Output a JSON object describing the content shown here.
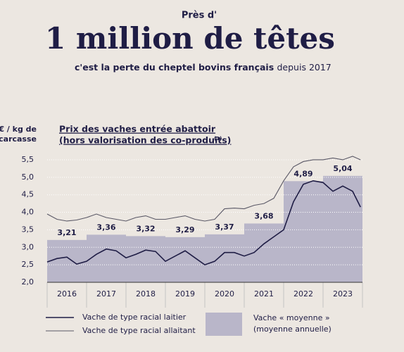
{
  "header": {
    "pre": "Près d'",
    "title": "1 million de têtes",
    "subtitle_bold": "c'est la perte du cheptel bovins français",
    "subtitle_light": "depuis 2017"
  },
  "chart_data": {
    "type": "combo",
    "title": [
      "Prix des vaches entrée abattoir",
      "(hors valorisation des co-produits)"
    ],
    "title_note": "(1)",
    "y_label": [
      "€ / kg de",
      "carcasse"
    ],
    "categories": [
      "2016",
      "2017",
      "2018",
      "2019",
      "2020",
      "2021",
      "2022",
      "2023"
    ],
    "bars": {
      "name": [
        "Vache « moyenne »",
        "(moyenne annuelle)"
      ],
      "color": "#b9b6c9",
      "values": [
        3.21,
        3.36,
        3.32,
        3.29,
        3.37,
        3.68,
        4.89,
        5.04
      ],
      "value_labels": [
        "3,21",
        "3,36",
        "3,32",
        "3,29",
        "3,37",
        "3,68",
        "4,89",
        "5,04"
      ]
    },
    "x": [
      2016,
      2016.25,
      2016.5,
      2016.75,
      2017,
      2017.25,
      2017.5,
      2017.75,
      2018,
      2018.25,
      2018.5,
      2018.75,
      2019,
      2019.25,
      2019.5,
      2019.75,
      2020,
      2020.25,
      2020.5,
      2020.75,
      2021,
      2021.25,
      2021.5,
      2021.75,
      2022,
      2022.25,
      2022.5,
      2022.75,
      2023,
      2023.25,
      2023.5,
      2023.75,
      2023.95
    ],
    "series": [
      {
        "name": "Vache de type racial laitier",
        "color": "#1f1d45",
        "width": 1.6,
        "values": [
          2.58,
          2.68,
          2.72,
          2.52,
          2.6,
          2.8,
          2.95,
          2.9,
          2.7,
          2.8,
          2.92,
          2.88,
          2.6,
          2.75,
          2.9,
          2.7,
          2.5,
          2.6,
          2.85,
          2.85,
          2.75,
          2.85,
          3.1,
          3.3,
          3.5,
          4.3,
          4.8,
          4.9,
          4.85,
          4.6,
          4.75,
          4.6,
          4.15
        ]
      },
      {
        "name": "Vache de type racial allaitant",
        "color": "#5a5866",
        "width": 1.1,
        "values": [
          3.95,
          3.8,
          3.75,
          3.78,
          3.85,
          3.95,
          3.85,
          3.8,
          3.75,
          3.85,
          3.9,
          3.8,
          3.8,
          3.85,
          3.9,
          3.8,
          3.75,
          3.8,
          4.1,
          4.12,
          4.1,
          4.2,
          4.25,
          4.4,
          4.9,
          5.3,
          5.45,
          5.5,
          5.5,
          5.55,
          5.5,
          5.6,
          5.5
        ]
      }
    ],
    "xlim": [
      2016,
      2024
    ],
    "ylim": [
      2.0,
      5.62
    ],
    "yticks": [
      {
        "value": 2.0,
        "label": "2,0"
      },
      {
        "value": 2.5,
        "label": "2,5"
      },
      {
        "value": 3.0,
        "label": "3,0"
      },
      {
        "value": 3.5,
        "label": "3,5"
      },
      {
        "value": 4.0,
        "label": "4,0"
      },
      {
        "value": 4.5,
        "label": "4,5"
      },
      {
        "value": 5.0,
        "label": "5,0"
      },
      {
        "value": 5.5,
        "label": "5,5"
      }
    ],
    "grid": true
  }
}
